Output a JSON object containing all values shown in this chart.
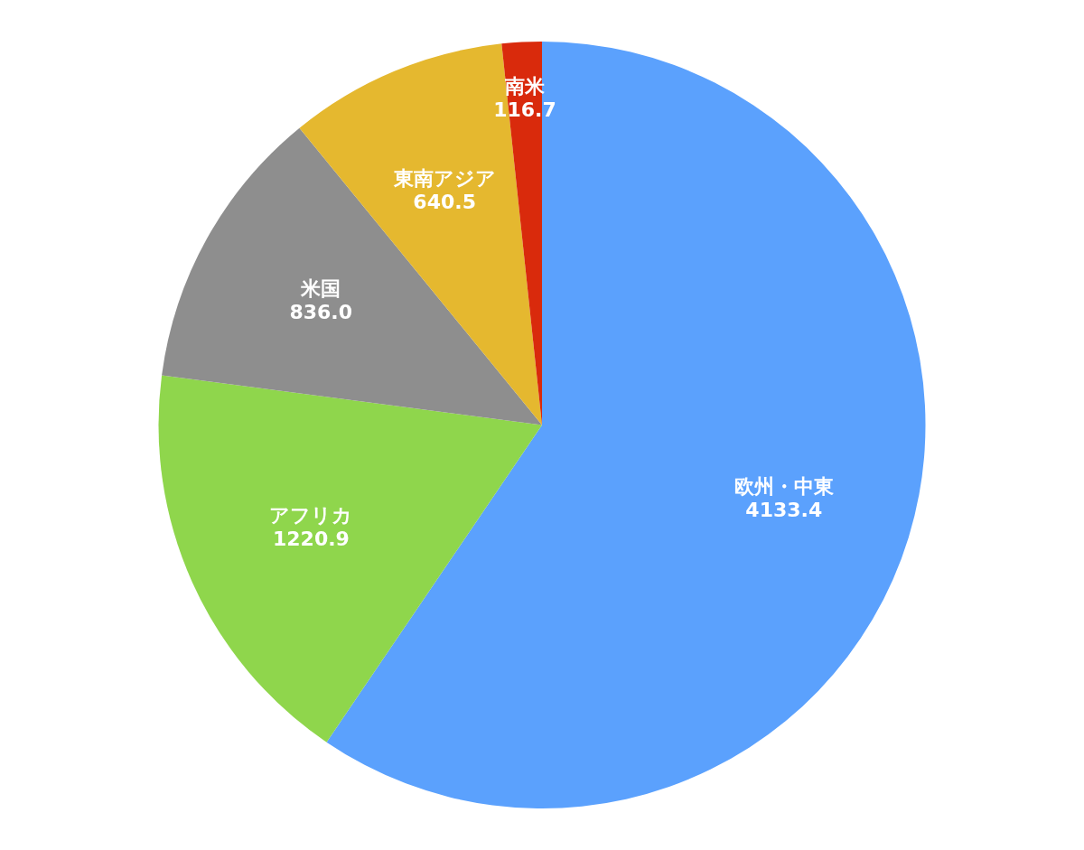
{
  "chart_data": {
    "type": "pie",
    "categories": [
      "欧州・中東",
      "アフリカ",
      "米国",
      "東南アジア",
      "南米"
    ],
    "values": [
      4133.4,
      1220.9,
      836.0,
      640.5,
      116.7
    ],
    "value_labels": [
      "4133.4",
      "1220.9",
      "836.0",
      "640.5",
      "116.7"
    ],
    "colors": [
      "#5ba1fd",
      "#8fd64c",
      "#8e8e8e",
      "#e5b82f",
      "#d92a0c"
    ],
    "legend": false
  }
}
